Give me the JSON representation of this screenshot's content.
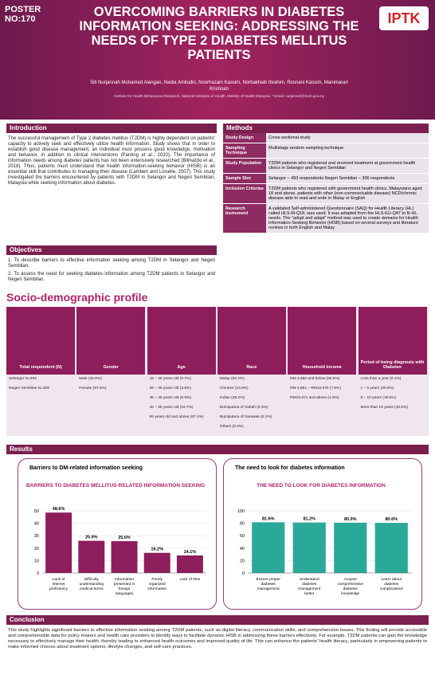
{
  "header": {
    "poster_no": "POSTER NO:170",
    "title": "OVERCOMING BARRIERS IN DIABETES INFORMATION SEEKING: ADDRESSING THE NEEDS OF TYPE 2 DIABETES MELLITUS PATIENTS",
    "logo": "IPTK",
    "authors": "Siti Nurjannah Mohamed Alangan, Nadia Amiludin, Noorhazani Kassim, Norbakhiah Ibrahim, Rosnani Kassim, Manimaran Krishnan",
    "affiliation": "Institute for Health Behavioural Research, National Institutes of Health, Ministry of Health Malaysia. * Email: nurjannah@moh.gov.my"
  },
  "introduction": {
    "heading": "Introduction",
    "text": "The successful management of Type 2 diabetes mellitus (T2DM) is highly dependent on patients' capacity to actively seek and effectively utilize health information. Study shows that in order to establish good disease management, an individual must possess good knowledge, motivation and behavior, in addition to clinical interventions (Panting et al., 2020). The importance of information needs among diabetes patients has not been extensively researched (Bilmatzki et al., 2018). Thus, patients must understand that health information-seeking behavior (HISB) is an essential skill that contributes to managing their disease (Lambert and Loiselle, 2007). This study investigated the barriers encountered by patients with T2DM in Selangor and Negeri Sembilan, Malaysia while seeking information about diabetes."
  },
  "objectives": {
    "heading": "Objectives",
    "items": [
      "1. To describe barriers to effective information seeking among T2DM in Selangor and Negeri Sembilan.",
      "2. To assess the need for seeking diabetes information among T2DM patients in Selangor and Negeri Sembilan."
    ]
  },
  "methods": {
    "heading": "Methods",
    "rows": [
      [
        "Study Design",
        "Cross-sectional study"
      ],
      [
        "Sampling Technique",
        "Multistage random sampling technique"
      ],
      [
        "Study Population",
        "T2DM patients who registered and received treatment at government health clinics in Selangor and Negeri Sembilan"
      ],
      [
        "Sample Size",
        "Selangor – 493 respondents Negeri Sembilan – 306 respondents"
      ],
      [
        "Inclusion Criterias",
        "T2DM patients who registered with government health clinics, Malaysians aged 18 and above, patients with other (non-communicable disease) NCD/chronic disease able to read and write in Malay or English"
      ],
      [
        "Research Instrument",
        "A validated Self-administered Questionnaire (SAQ) for Health Literacy (HL) called HLS-M-Q18, was used. It was adapted from the HLS-EU-Q47 to fit HL needs. The \"adopt and adapt\" method was used to create domains for Health Information-Seeking Behavior (HISB) based on several surveys and literature reviews in both English and Malay"
      ]
    ]
  },
  "socio_demographic": {
    "heading": "Socio-demographic profile",
    "columns": [
      {
        "header": "Total respondent (N)",
        "cells": [
          "Selangor N=493",
          "Negeri Sembilan N=306"
        ]
      },
      {
        "header": "Gender",
        "cells": [
          "Male (42.6%)",
          "Female (57.4%)"
        ]
      },
      {
        "header": "Age",
        "cells": [
          "18 – 25 years old (0.7%)",
          "26 – 35 years old (3.6%)",
          "36 – 45 years old (8.9%)",
          "46 – 55 years old (19.7%)",
          "65 years old and above (67.1%)"
        ]
      },
      {
        "header": "Race",
        "cells": [
          "Malay (62.2%)",
          "Chinese (10.8%)",
          "Indian (26.2%)",
          "Bumiputera of Sabah (0.3%)",
          "Bumiputera of Sarawak (0.1%)",
          "Others (0.4%)"
        ]
      },
      {
        "header": "Household income",
        "cells": [
          "RM 4,850 and below (90.8%)",
          "RM 4,851 – RM10,970 (7.6%)",
          "RM10,971 and above (1.6%)"
        ]
      },
      {
        "header": "Period of being diagnosis with Diabetes",
        "cells": [
          "Less than a year (9.1%)",
          "1 – 5 years (30.8%)",
          "6 – 10 years (19.5%)",
          "More than 10 years (40.6%)"
        ]
      }
    ]
  },
  "results": {
    "heading": "Results",
    "panels": [
      "Barriers to DM-related information seeking",
      "The need to look for diabetes information"
    ]
  },
  "chart_data": [
    {
      "type": "bar",
      "title": "BARRIERS TO DIABETES MELLITUS-RELATED INFORMATION SEEKING",
      "categories": [
        "Lack of internet proficiency",
        "Difficulty understanding medical terms",
        "Information presented in foreign languages",
        "Poorly organized information",
        "Lack of time"
      ],
      "values": [
        48.6,
        25.9,
        25.6,
        16.2,
        14.1
      ],
      "value_labels": [
        "48.6%",
        "25.9%",
        "25.6%",
        "16.2%",
        "14.1%"
      ],
      "color": "#8e1d5b",
      "ylim": [
        0,
        50
      ],
      "yticks": [
        0,
        10,
        20,
        30,
        40,
        50
      ],
      "grid": true
    },
    {
      "type": "bar",
      "title": "THE NEED TO LOOK FOR DIABETES INFORMATION",
      "categories": [
        "Ensure proper diabetes management",
        "Understand diabetes management better",
        "Acquire comprehensive diabetes knowledge",
        "Learn about diabetes complications"
      ],
      "values": [
        81.6,
        81.2,
        80.9,
        80.6
      ],
      "value_labels": [
        "81.6%",
        "81.2%",
        "80.9%",
        "80.6%"
      ],
      "color": "#2aa99a",
      "ylim": [
        0,
        100
      ],
      "yticks": [
        0,
        20,
        40,
        60,
        80,
        100
      ],
      "grid": true
    }
  ],
  "conclusion": {
    "heading": "Conclusion",
    "text": "This study highlights significant barriers to effective information seeking among T2DM patients, such as digital literacy, communication skills, and comprehension issues. This finding will provide accessible and comprehensible data for policy makers and health care providers to identify ways to facilitate dynamic HISB in addressing these barriers effectively. For example, T2DM patients can gain the knowledge necessary to effectively manage their health, thereby leading to enhanced health outcomes and improved quality of life. This can enhance the patients' health literacy, particularly in empowering patients to make informed choices about treatment options, lifestyle changes, and self-care practices."
  }
}
